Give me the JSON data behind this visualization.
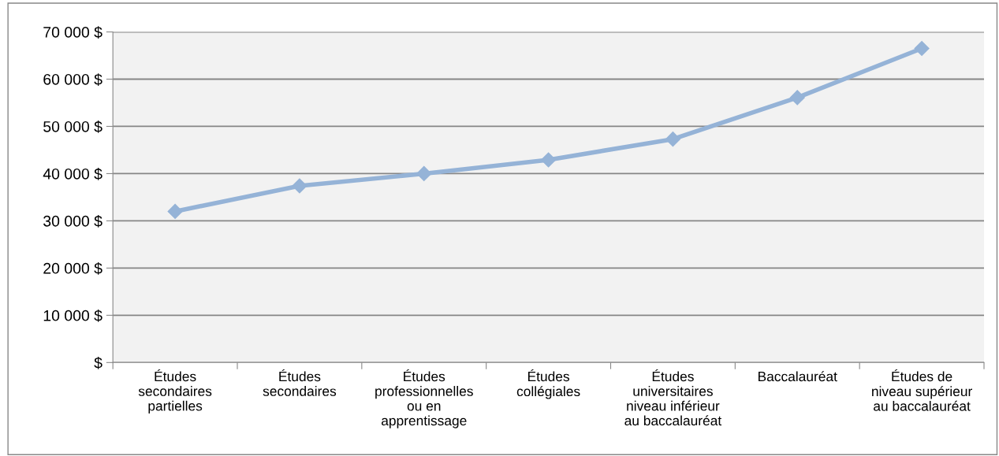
{
  "chart_data": {
    "type": "line",
    "categories": [
      "Études\nsecondaires\npartielles",
      "Études\nsecondaires",
      "Études\nprofessionnelles\nou en\napprentissage",
      "Études\ncollégiales",
      "Études\nuniversitaires\nniveau inférieur\nau baccalauréat",
      "Baccalauréat",
      "Études de\nniveau supérieur\nau baccalauréat"
    ],
    "series": [
      {
        "color": "#95b3d7",
        "values": [
          32000,
          37400,
          40000,
          42900,
          47300,
          56100,
          66500
        ]
      }
    ],
    "ylim": [
      0,
      70000
    ],
    "yticks": [
      {
        "value": 0,
        "label": "$"
      },
      {
        "value": 10000,
        "label": "10 000 $"
      },
      {
        "value": 20000,
        "label": "20 000 $"
      },
      {
        "value": 30000,
        "label": "30 000 $"
      },
      {
        "value": 40000,
        "label": "40 000 $"
      },
      {
        "value": 50000,
        "label": "50 000 $"
      },
      {
        "value": 60000,
        "label": "60 000 $"
      },
      {
        "value": 70000,
        "label": "70 000 $"
      }
    ],
    "grid": "y",
    "marker": "diamond",
    "line_style": "solid"
  }
}
